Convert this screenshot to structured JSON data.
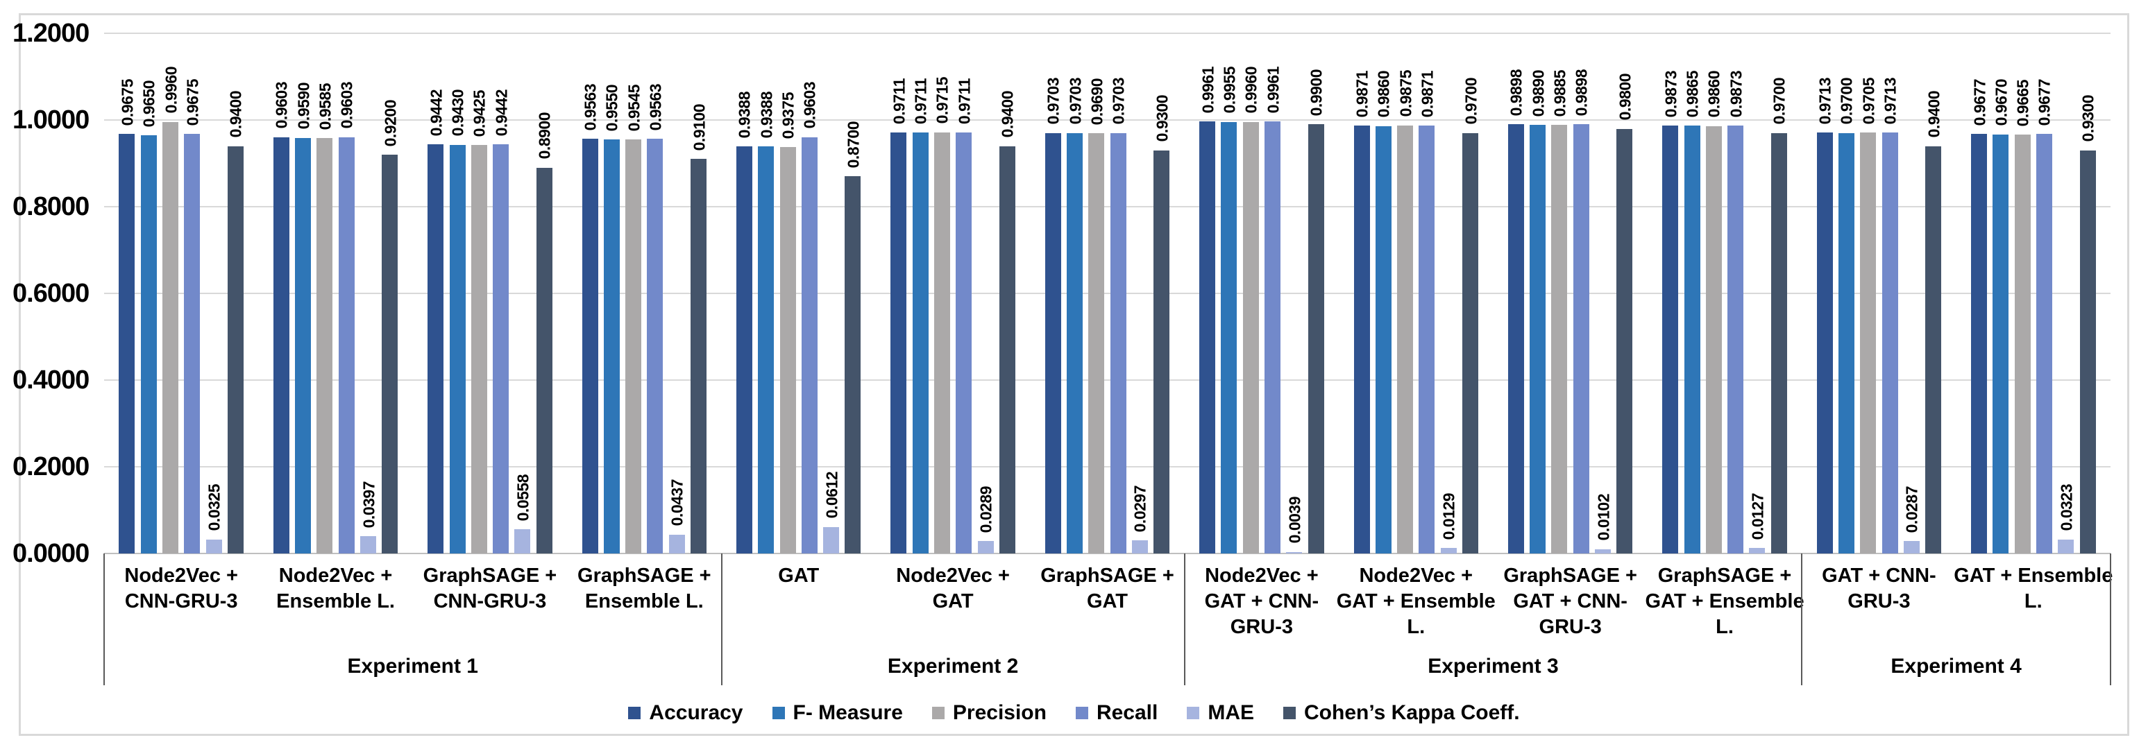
{
  "chart_data": {
    "type": "bar",
    "title": "",
    "xlabel": "",
    "ylabel": "",
    "ylim": [
      0.0,
      1.2
    ],
    "y_ticks": [
      "0.0000",
      "0.2000",
      "0.4000",
      "0.6000",
      "0.8000",
      "1.0000",
      "1.2000"
    ],
    "grid": true,
    "legend_position": "bottom",
    "value_label_decimals": 4,
    "value_label_orientation": "vertical-bottom-to-top",
    "categories": [
      "Node2Vec + CNN-GRU-3",
      "Node2Vec + Ensemble L.",
      "GraphSAGE + CNN-GRU-3",
      "GraphSAGE + Ensemble L.",
      "GAT",
      "Node2Vec + GAT",
      "GraphSAGE + GAT",
      "Node2Vec + GAT + CNN-GRU-3",
      "Node2Vec + GAT + Ensemble L.",
      "GraphSAGE + GAT + CNN-GRU-3",
      "GraphSAGE + GAT + Ensemble L.",
      "GAT + CNN-GRU-3",
      "GAT + Ensemble L."
    ],
    "experiments": [
      {
        "label": "Experiment 1",
        "from": 0,
        "to": 3
      },
      {
        "label": "Experiment 2",
        "from": 4,
        "to": 6
      },
      {
        "label": "Experiment 3",
        "from": 7,
        "to": 10
      },
      {
        "label": "Experiment 4",
        "from": 11,
        "to": 12
      }
    ],
    "series": [
      {
        "name": "Accuracy",
        "color": "#2F528F",
        "values": [
          0.9675,
          0.9603,
          0.9442,
          0.9563,
          0.9388,
          0.9711,
          0.9703,
          0.9961,
          0.9871,
          0.9898,
          0.9873,
          0.9713,
          0.9677
        ]
      },
      {
        "name": "F- Measure",
        "color": "#2E76B7",
        "values": [
          0.965,
          0.959,
          0.943,
          0.955,
          0.9388,
          0.9711,
          0.9703,
          0.9955,
          0.986,
          0.989,
          0.9865,
          0.97,
          0.967
        ]
      },
      {
        "name": "Precision",
        "color": "#ABA9A9",
        "values": [
          0.996,
          0.9585,
          0.9425,
          0.9545,
          0.9375,
          0.9715,
          0.969,
          0.996,
          0.9875,
          0.9885,
          0.986,
          0.9705,
          0.9665
        ]
      },
      {
        "name": "Recall",
        "color": "#7289CA",
        "values": [
          0.9675,
          0.9603,
          0.9442,
          0.9563,
          0.9603,
          0.9711,
          0.9703,
          0.9961,
          0.9871,
          0.9898,
          0.9873,
          0.9713,
          0.9677
        ]
      },
      {
        "name": "MAE",
        "color": "#A6B4DF",
        "values": [
          0.0325,
          0.0397,
          0.0558,
          0.0437,
          0.0612,
          0.0289,
          0.0297,
          0.0039,
          0.0129,
          0.0102,
          0.0127,
          0.0287,
          0.0323
        ]
      },
      {
        "name": "Cohen’s Kappa Coeff.",
        "color": "#44546A",
        "values": [
          0.94,
          0.92,
          0.89,
          0.91,
          0.87,
          0.94,
          0.93,
          0.99,
          0.97,
          0.98,
          0.97,
          0.94,
          0.93
        ]
      }
    ],
    "colors": {
      "gridline": "#D9D9D9",
      "axis_line": "#BFBFBF",
      "separator": "#595959",
      "frame_border": "#D9D9D9",
      "label_text": "#000000",
      "background": "#FFFFFF"
    }
  }
}
